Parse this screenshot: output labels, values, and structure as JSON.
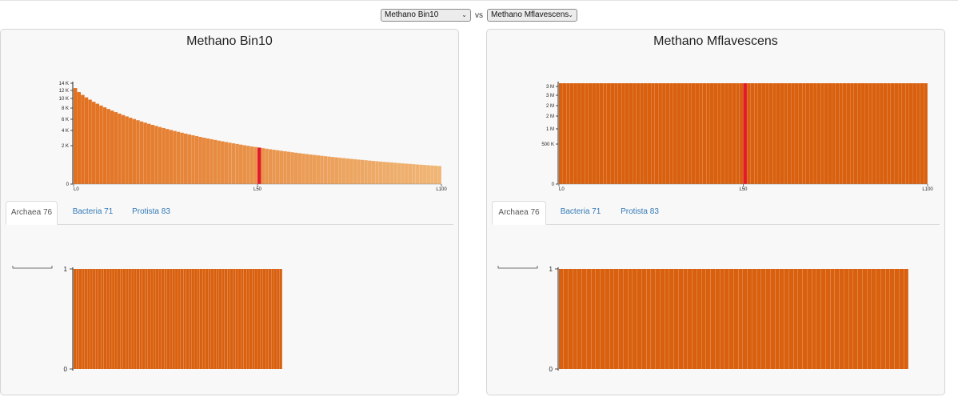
{
  "selectors": {
    "left_value": "Methano Bin10",
    "vs_label": "vs",
    "right_value": "Methano Mflavescens"
  },
  "panels": [
    {
      "title": "Methano Bin10",
      "tabs": [
        {
          "label": "Archaea 76",
          "active": true
        },
        {
          "label": "Bacteria 71",
          "active": false
        },
        {
          "label": "Protista 83",
          "active": false
        }
      ]
    },
    {
      "title": "Methano Mflavescens",
      "tabs": [
        {
          "label": "Archaea 76",
          "active": true
        },
        {
          "label": "Bacteria 71",
          "active": false
        },
        {
          "label": "Protista 83",
          "active": false
        }
      ]
    }
  ],
  "chart_data": [
    {
      "type": "bar",
      "panel": "Methano Bin10",
      "y_ticks": [
        "14 K",
        "12 K",
        "10 K",
        "8 K",
        "6 K",
        "4 K",
        "2 K",
        "0"
      ],
      "x_ticks": [
        "L0",
        "L50",
        "L100"
      ],
      "bar_count": 100,
      "highlight_index": 50,
      "ylim": [
        0,
        14500
      ],
      "values_range": [
        13800,
        2600
      ],
      "colors": {
        "bar_start": "#e2701f",
        "bar_end": "#f0b676",
        "highlight": "#e31a2e"
      }
    },
    {
      "type": "bar",
      "panel": "Methano Mflavescens",
      "y_ticks": [
        "3 M",
        "3 M",
        "2 M",
        "2 M",
        "1 M",
        "500 K",
        "0"
      ],
      "x_ticks": [
        "L0",
        "L50",
        "L100"
      ],
      "bar_count": 100,
      "highlight_index": 50,
      "ylim": [
        0,
        3000000
      ],
      "values_range": [
        3000000,
        3000000
      ],
      "colors": {
        "bar": "#d9600e",
        "highlight": "#e31a2e"
      }
    },
    {
      "type": "bar",
      "panel": "Methano Bin10",
      "tab": "Archaea 76",
      "y_ticks": [
        "1",
        "0"
      ],
      "bar_count": 76,
      "ylim": [
        0,
        1
      ],
      "values_all": 1,
      "colors": {
        "bar": "#d9600e"
      }
    },
    {
      "type": "bar",
      "panel": "Methano Mflavescens",
      "tab": "Archaea 76",
      "y_ticks": [
        "1",
        "0"
      ],
      "bar_count": 76,
      "ylim": [
        0,
        1
      ],
      "values_all": 1,
      "colors": {
        "bar": "#d9600e"
      }
    }
  ]
}
